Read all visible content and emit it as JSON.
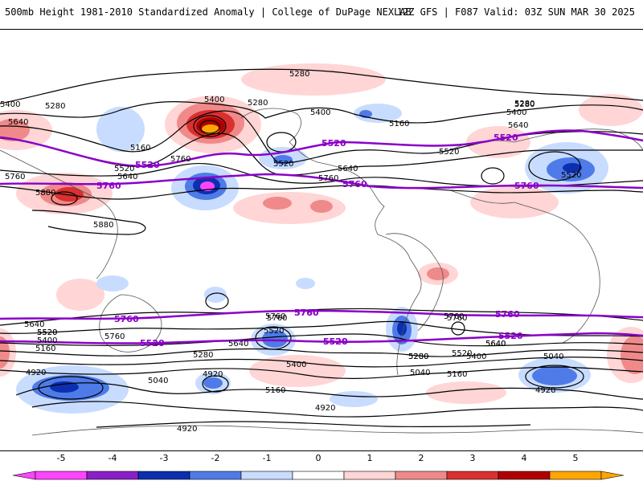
{
  "header": {
    "left": "500mb Height 1981-2010 Standardized Anomaly | College of DuPage NEXLAB",
    "right": "12Z GFS | F087 Valid: 03Z SUN MAR 30 2025"
  },
  "colors": {
    "neg5": "#ff44ff",
    "neg4": "#8b1fc8",
    "neg3": "#0c2fb0",
    "neg2": "#4f7be8",
    "neg1": "#c8dcff",
    "zero": "#ffffff",
    "pos1": "#ffd5d5",
    "pos2": "#f08a8a",
    "pos3": "#d93030",
    "pos4": "#b00000",
    "pos5": "#ffa500",
    "contour": "#000000",
    "highlight_contour": "#8a00c8",
    "coast": "#555555"
  },
  "colorbar": {
    "ticks": [
      "-5",
      "-4",
      "-3",
      "-2",
      "-1",
      "0",
      "1",
      "2",
      "3",
      "4",
      "5"
    ]
  },
  "contour_labels": [
    "5280",
    "5400",
    "5280",
    "5640",
    "5160",
    "5760",
    "5520",
    "5640",
    "5880",
    "5880",
    "5400",
    "5280",
    "5760",
    "5520",
    "5400",
    "5160",
    "5280",
    "5520",
    "5760",
    "5640",
    "5520",
    "5640",
    "5400",
    "5280",
    "5640",
    "5520",
    "5760",
    "5760",
    "5640",
    "5520",
    "5400",
    "5280",
    "5160",
    "4920",
    "5760",
    "5280",
    "5040",
    "4920",
    "5520",
    "5640",
    "5400",
    "5160",
    "4920",
    "5760",
    "5280",
    "5040",
    "5160",
    "5400",
    "5520",
    "5640",
    "5760",
    "5040",
    "4920",
    "4920"
  ],
  "highlight_labels": [
    "5520",
    "5760",
    "5520",
    "5760",
    "5520",
    "5760",
    "5760",
    "5520",
    "5760",
    "5520",
    "5760",
    "5520",
    "5520",
    "5760"
  ]
}
